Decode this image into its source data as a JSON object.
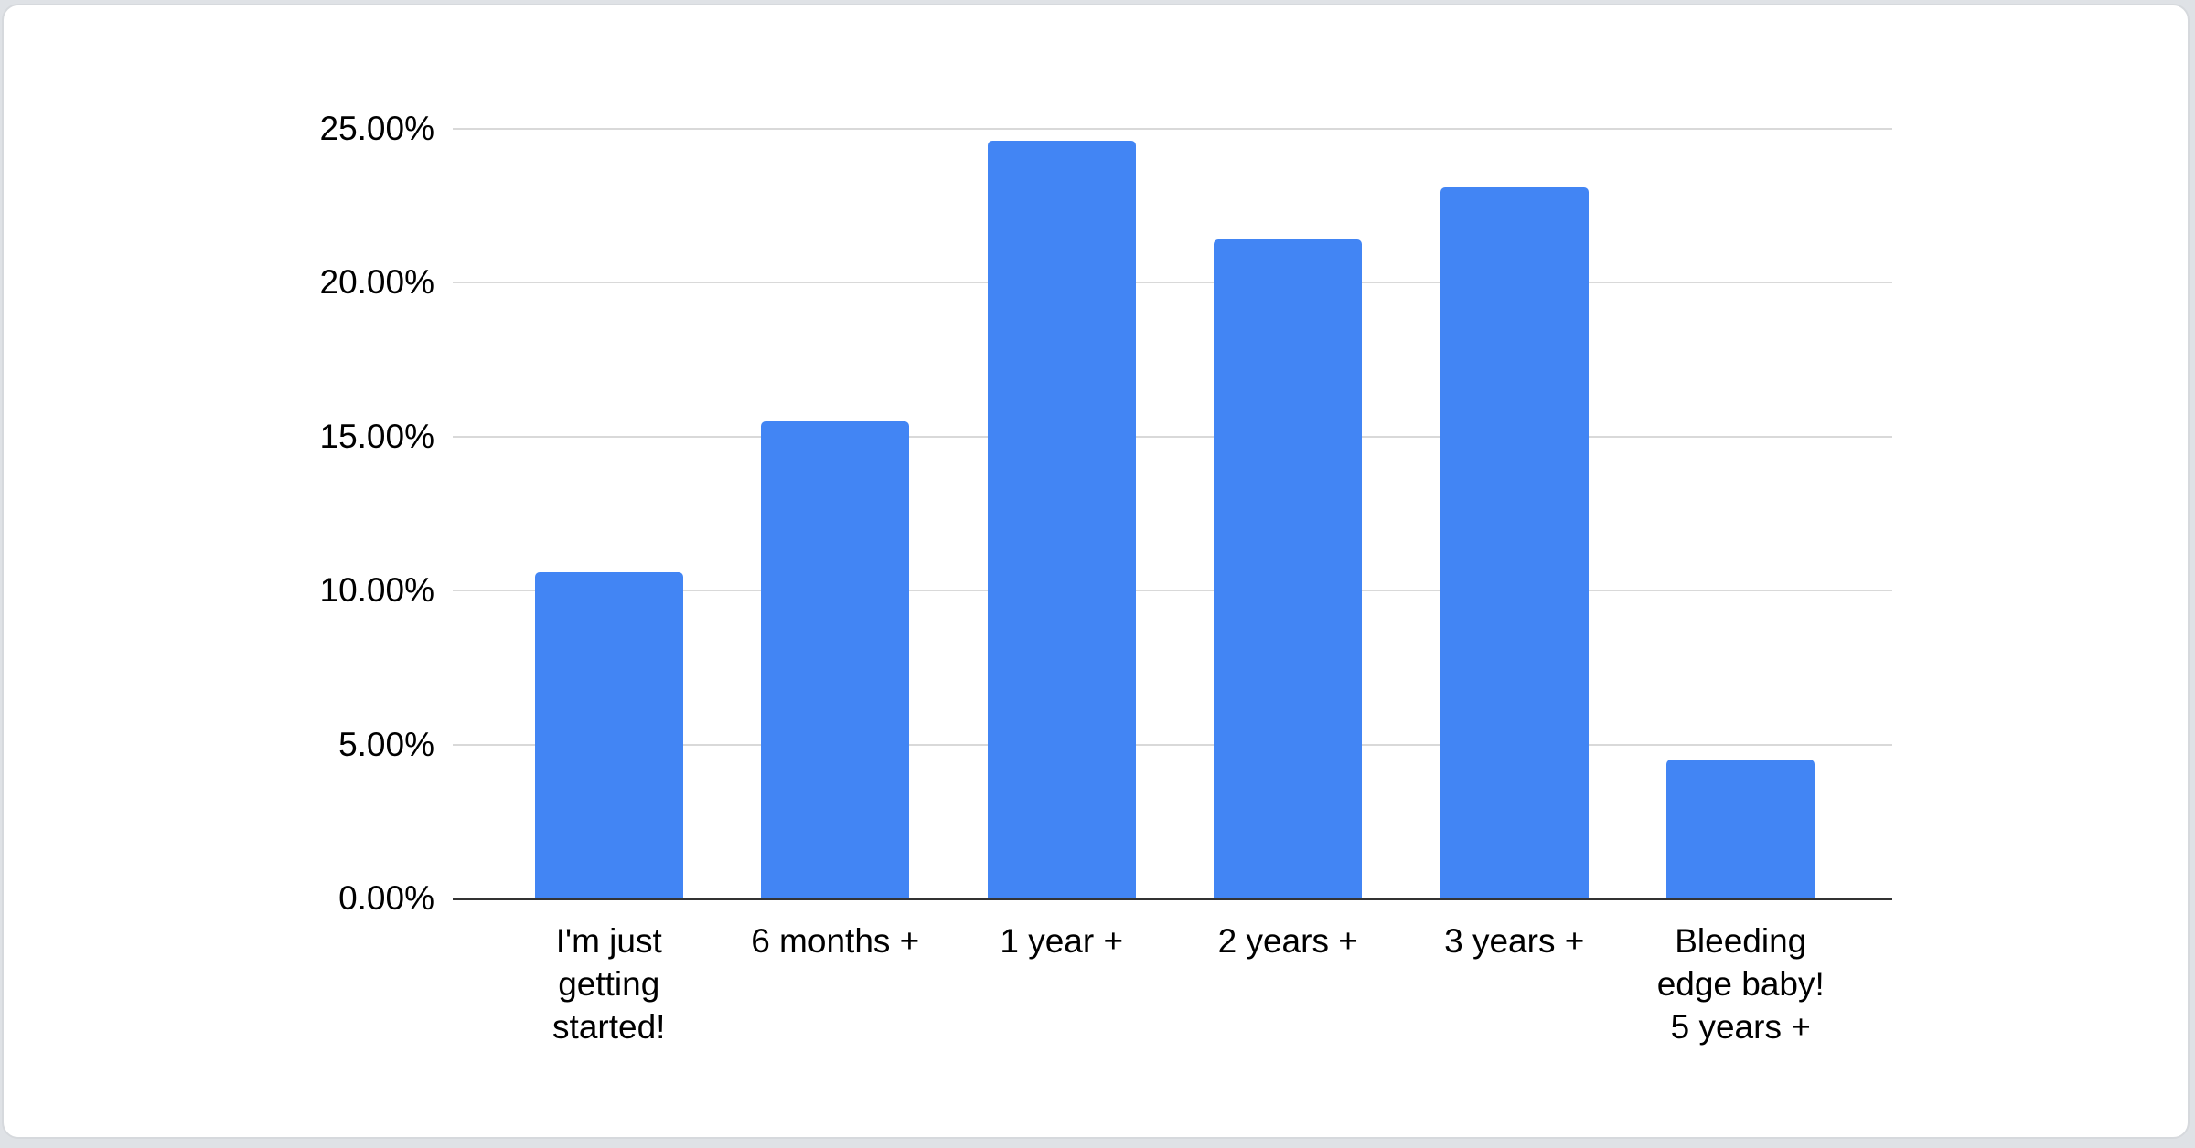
{
  "page": {
    "background_color": "#dfe2e6",
    "card_background_color": "#ffffff",
    "card_border_color": "#d6d9dd"
  },
  "chart_data": {
    "type": "bar",
    "title": "",
    "xlabel": "",
    "ylabel": "",
    "ylim": [
      0,
      25
    ],
    "grid": true,
    "legend": "none",
    "bar_color": "#4285f4",
    "gridline_color": "#d9d9d9",
    "axis_line_color": "#333333",
    "label_color": "#000000",
    "categories": [
      "I'm just getting started!",
      "6 months +",
      "1 year +",
      "2 years +",
      "3 years +",
      "Bleeding edge baby! 5 years +"
    ],
    "category_display_lines": [
      [
        "I'm just",
        "getting",
        "started!"
      ],
      [
        "6 months +"
      ],
      [
        "1 year +"
      ],
      [
        "2 years +"
      ],
      [
        "3 years +"
      ],
      [
        "Bleeding",
        "edge baby!",
        "5 years +"
      ]
    ],
    "values": [
      10.6,
      15.5,
      24.6,
      21.4,
      23.1,
      4.5
    ],
    "y_ticks": [
      {
        "value": 0,
        "label": "0.00%"
      },
      {
        "value": 5,
        "label": "5.00%"
      },
      {
        "value": 10,
        "label": "10.00%"
      },
      {
        "value": 15,
        "label": "15.00%"
      },
      {
        "value": 20,
        "label": "20.00%"
      },
      {
        "value": 25,
        "label": "25.00%"
      }
    ]
  }
}
